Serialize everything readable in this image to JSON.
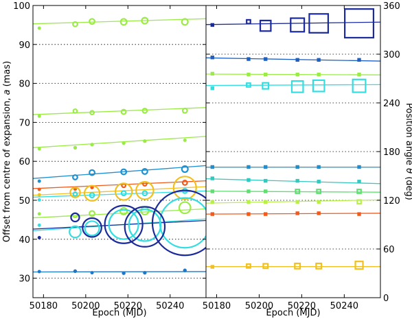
{
  "chart_data": {
    "type": "scatter",
    "panels": [
      {
        "id": "left",
        "xlabel": "Epoch (MJD)",
        "ylabel": "Offset from centre of expansion, a (mas)",
        "ylabel_parts": [
          "Offset from centre of expansion, ",
          "a",
          " (mas)"
        ],
        "xlim": [
          50175,
          50257
        ],
        "ylim": [
          25,
          100
        ],
        "xticks": [
          50180,
          50200,
          50220,
          50240
        ],
        "xtick_labels": [
          "50180",
          "50200",
          "50220",
          "50240"
        ],
        "yticks": [
          30,
          40,
          50,
          60,
          70,
          80,
          90,
          100
        ],
        "ytick_labels": [
          "30",
          "40",
          "50",
          "60",
          "70",
          "80",
          "90",
          "100"
        ],
        "grid_y": true,
        "marker": "circle",
        "series": [
          {
            "color": "#9aec45",
            "x": [
              50178,
              50195,
              50203,
              50218,
              50228,
              50247
            ],
            "y": [
              94.2,
              95.2,
              95.9,
              95.8,
              96.1,
              95.8
            ],
            "size": [
              0.3,
              0.6,
              0.7,
              0.8,
              0.8,
              0.8
            ],
            "fit": [
              [
                50175,
                95.3
              ],
              [
                50257,
                96.6
              ]
            ]
          },
          {
            "color": "#9aec45",
            "x": [
              50178,
              50195,
              50203,
              50218,
              50228,
              50247
            ],
            "y": [
              71.6,
              72.9,
              72.5,
              72.7,
              73.0,
              73.0
            ],
            "size": [
              0.3,
              0.5,
              0.5,
              0.6,
              0.6,
              0.6
            ],
            "fit": [
              [
                50175,
                72.0
              ],
              [
                50257,
                73.8
              ]
            ]
          },
          {
            "color": "#9aec45",
            "x": [
              50178,
              50195,
              50203,
              50218,
              50228,
              50247
            ],
            "y": [
              63.2,
              63.5,
              64.3,
              64.7,
              65.2,
              65.4
            ],
            "size": [
              0.3,
              0.4,
              0.4,
              0.4,
              0.4,
              0.3
            ],
            "fit": [
              [
                50175,
                63.5
              ],
              [
                50257,
                66.4
              ]
            ]
          },
          {
            "color": "#1e90d0",
            "x": [
              50178,
              50195,
              50203,
              50218,
              50228,
              50247
            ],
            "y": [
              54.9,
              55.9,
              57.1,
              57.3,
              57.4,
              58.0
            ],
            "size": [
              0.3,
              0.6,
              0.7,
              0.7,
              0.7,
              0.8
            ],
            "fit": [
              [
                50175,
                55.6
              ],
              [
                50257,
                58.9
              ]
            ]
          },
          {
            "color": "#f05a1a",
            "x": [
              50178,
              50195,
              50203,
              50218,
              50228,
              50247
            ],
            "y": [
              52.8,
              52.9,
              53.3,
              53.8,
              54.2,
              54.5
            ],
            "size": [
              0.3,
              0.4,
              0.4,
              0.5,
              0.5,
              0.6
            ],
            "fit": [
              [
                50175,
                53.0
              ],
              [
                50257,
                55.0
              ]
            ]
          },
          {
            "color": "#f0c020",
            "x": [
              50178,
              50195,
              50203,
              50218,
              50228,
              50247
            ],
            "y": [
              51.4,
              52.0,
              51.8,
              52.2,
              52.5,
              53.2
            ],
            "size": [
              0.3,
              1.3,
              2.0,
              2.2,
              2.3,
              3.0
            ],
            "fit": [
              [
                50175,
                51.3
              ],
              [
                50257,
                53.5
              ]
            ]
          },
          {
            "color": "#33dde0",
            "x": [
              50178,
              50195,
              50203,
              50218,
              50228,
              50247
            ],
            "y": [
              50.1,
              51.6,
              51.3,
              51.8,
              51.8,
              52.4
            ],
            "size": [
              0.3,
              0.5,
              0.6,
              0.6,
              0.6,
              0.6
            ],
            "fit": [
              [
                50175,
                50.8
              ],
              [
                50257,
                52.4
              ]
            ]
          },
          {
            "color": "#9aec45",
            "x": [
              50178,
              50195,
              50203,
              50218,
              50228,
              50247
            ],
            "y": [
              46.5,
              46.2,
              46.6,
              47.2,
              47.3,
              48.1
            ],
            "size": [
              0.3,
              0.6,
              0.7,
              0.9,
              1.0,
              1.5
            ],
            "fit": [
              [
                50175,
                45.5
              ],
              [
                50257,
                47.8
              ]
            ]
          },
          {
            "color": "#33dde0",
            "x": [
              50178,
              50195,
              50203,
              50218,
              50228,
              50247
            ],
            "y": [
              43.6,
              41.9,
              42.8,
              43.8,
              43.6,
              44.2
            ],
            "size": [
              0.3,
              1.5,
              1.9,
              3.9,
              4.2,
              6.6
            ],
            "fit": [
              [
                50175,
                42.2
              ],
              [
                50257,
                45.2
              ]
            ]
          },
          {
            "color": "#1a2a9a",
            "x": [
              50178,
              50195,
              50203,
              50218,
              50228,
              50247
            ],
            "y": [
              40.4,
              45.6,
              43.0,
              43.8,
              43.2,
              44.2
            ],
            "size": [
              0.3,
              1.1,
              2.5,
              5.0,
              5.3,
              8.6
            ],
            "fit": [
              [
                50175,
                42.6
              ],
              [
                50257,
                44.8
              ]
            ]
          },
          {
            "color": "#1e78c8",
            "x": [
              50178,
              50195,
              50203,
              50218,
              50228,
              50247
            ],
            "y": [
              31.7,
              31.8,
              31.4,
              31.3,
              31.4,
              32.0
            ],
            "size": [
              0.3,
              0.4,
              0.3,
              0.4,
              0.4,
              0.4
            ],
            "fit": [
              [
                50175,
                31.6
              ],
              [
                50257,
                31.7
              ]
            ]
          }
        ]
      },
      {
        "id": "right",
        "xlabel": "Epoch (MJD)",
        "ylabel": "Position angle θ (deg)",
        "ylabel_parts": [
          "Position angle ",
          "θ",
          " (deg)"
        ],
        "ylabel_side": "right",
        "xlim": [
          50175,
          50257
        ],
        "ylim": [
          0,
          360
        ],
        "xticks": [
          50180,
          50200,
          50220,
          50240
        ],
        "xtick_labels": [
          "50180",
          "50200",
          "50220",
          "50240"
        ],
        "yticks": [
          0,
          60,
          120,
          180,
          240,
          300,
          360
        ],
        "ytick_labels": [
          "0",
          "60",
          "120",
          "180",
          "240",
          "300",
          "360"
        ],
        "grid_y": true,
        "marker": "square",
        "series": [
          {
            "color": "#1a2a9a",
            "x": [
              50178,
              50195,
              50203,
              50218,
              50228,
              50247
            ],
            "y": [
              336,
              340,
              335,
              336,
              338,
              338
            ],
            "size": [
              0.3,
              0.5,
              1.4,
              1.8,
              2.5,
              3.8
            ],
            "fit": [
              [
                50175,
                336.5
              ],
              [
                50257,
                339.5
              ]
            ]
          },
          {
            "color": "#1e60c0",
            "x": [
              50178,
              50195,
              50203,
              50218,
              50228,
              50247
            ],
            "y": [
              296,
              294,
              294,
              293,
              293,
              293
            ],
            "size": [
              0.3,
              0.3,
              0.3,
              0.3,
              0.3,
              0.3
            ],
            "fit": [
              [
                50175,
                295.5
              ],
              [
                50257,
                291.5
              ]
            ]
          },
          {
            "color": "#9aec45",
            "x": [
              50178,
              50195,
              50203,
              50218,
              50228,
              50247
            ],
            "y": [
              276,
              275,
              275,
              275,
              275,
              275
            ],
            "size": [
              0.3,
              0.4,
              0.4,
              0.4,
              0.4,
              0.4
            ],
            "fit": [
              [
                50175,
                275.5
              ],
              [
                50257,
                274.5
              ]
            ]
          },
          {
            "color": "#33dde0",
            "x": [
              50178,
              50195,
              50203,
              50218,
              50228,
              50247
            ],
            "y": [
              258,
              262,
              261,
              260,
              261,
              261
            ],
            "size": [
              0.3,
              0.5,
              0.8,
              1.5,
              1.5,
              1.7
            ],
            "fit": [
              [
                50175,
                261.5
              ],
              [
                50257,
                262.5
              ]
            ]
          },
          {
            "color": "#1e90d0",
            "x": [
              50178,
              50195,
              50203,
              50218,
              50228,
              50247
            ],
            "y": [
              161,
              161,
              161,
              161,
              161,
              161
            ],
            "size": [
              0.3,
              0.3,
              0.3,
              0.3,
              0.3,
              0.3
            ],
            "fit": [
              [
                50175,
                160.8
              ],
              [
                50257,
                160.8
              ]
            ]
          },
          {
            "color": "#33c8c0",
            "x": [
              50178,
              50195,
              50203,
              50218,
              50228,
              50247
            ],
            "y": [
              147,
              145,
              144,
              144,
              143,
              143
            ],
            "size": [
              0.3,
              0.3,
              0.3,
              0.3,
              0.3,
              0.3
            ],
            "fit": [
              [
                50175,
                146.5
              ],
              [
                50257,
                140.5
              ]
            ]
          },
          {
            "color": "#5ee070",
            "x": [
              50178,
              50195,
              50203,
              50218,
              50228,
              50247
            ],
            "y": [
              131,
              131,
              131,
              131,
              131,
              131
            ],
            "size": [
              0.3,
              0.4,
              0.4,
              0.5,
              0.5,
              0.5
            ],
            "fit": [
              [
                50175,
                131.2
              ],
              [
                50257,
                130.0
              ]
            ]
          },
          {
            "color": "#b8f048",
            "x": [
              50178,
              50195,
              50203,
              50218,
              50228,
              50247
            ],
            "y": [
              118,
              118,
              118,
              118,
              118,
              118
            ],
            "size": [
              0.3,
              0.4,
              0.4,
              0.4,
              0.4,
              0.5
            ],
            "fit": [
              [
                50175,
                116.5
              ],
              [
                50257,
                120.5
              ]
            ]
          },
          {
            "color": "#f05a1a",
            "x": [
              50178,
              50195,
              50203,
              50218,
              50228,
              50247
            ],
            "y": [
              103,
              103,
              103,
              104,
              104,
              103
            ],
            "size": [
              0.3,
              0.3,
              0.3,
              0.3,
              0.3,
              0.3
            ],
            "fit": [
              [
                50175,
                103.0
              ],
              [
                50257,
                104.0
              ]
            ]
          },
          {
            "color": "#f0c020",
            "x": [
              50178,
              50195,
              50203,
              50218,
              50228,
              50247
            ],
            "y": [
              38,
              39,
              39,
              39,
              39,
              40
            ],
            "size": [
              0.3,
              0.5,
              0.6,
              0.7,
              0.7,
              1.0
            ],
            "fit": [
              [
                50175,
                38.3
              ],
              [
                50257,
                38.3
              ]
            ]
          }
        ]
      }
    ]
  }
}
